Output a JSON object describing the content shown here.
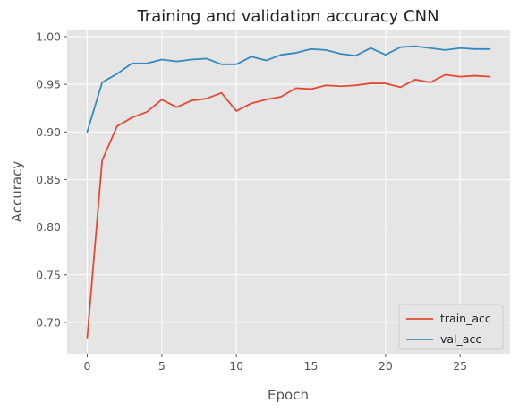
{
  "chart_data": {
    "type": "line",
    "title": "Training and validation accuracy CNN",
    "xlabel": "Epoch",
    "ylabel": "Accuracy",
    "xlim": [
      -1.35,
      28.35
    ],
    "ylim": [
      0.667,
      1.0075
    ],
    "xticks": [
      0,
      5,
      10,
      15,
      20,
      25
    ],
    "yticks": [
      0.7,
      0.75,
      0.8,
      0.85,
      0.9,
      0.95,
      1.0
    ],
    "grid": true,
    "legend_position": "lower-right",
    "x": [
      0,
      1,
      2,
      3,
      4,
      5,
      6,
      7,
      8,
      9,
      10,
      11,
      12,
      13,
      14,
      15,
      16,
      17,
      18,
      19,
      20,
      21,
      22,
      23,
      24,
      25,
      26,
      27
    ],
    "series": [
      {
        "name": "train_acc",
        "color": "#E24A33",
        "values": [
          0.684,
          0.87,
          0.906,
          0.915,
          0.921,
          0.934,
          0.926,
          0.933,
          0.935,
          0.941,
          0.922,
          0.93,
          0.934,
          0.937,
          0.946,
          0.945,
          0.949,
          0.948,
          0.949,
          0.951,
          0.951,
          0.947,
          0.955,
          0.952,
          0.96,
          0.958,
          0.959,
          0.958
        ]
      },
      {
        "name": "val_acc",
        "color": "#348ABD",
        "values": [
          0.9,
          0.952,
          0.961,
          0.972,
          0.972,
          0.976,
          0.974,
          0.976,
          0.977,
          0.971,
          0.971,
          0.979,
          0.975,
          0.981,
          0.983,
          0.987,
          0.986,
          0.982,
          0.98,
          0.988,
          0.981,
          0.989,
          0.99,
          0.988,
          0.986,
          0.988,
          0.987,
          0.987
        ]
      }
    ]
  }
}
